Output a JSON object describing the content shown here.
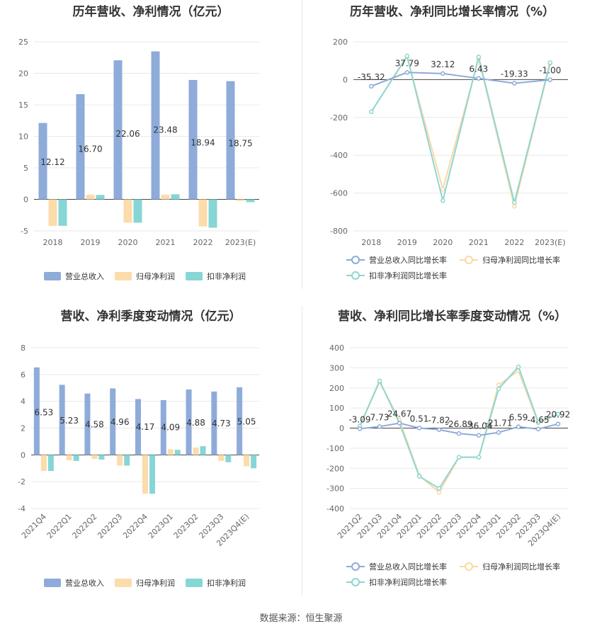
{
  "footer": "数据来源：恒生聚源",
  "colors": {
    "revenue": "#8eabd9",
    "net_profit": "#fbdcaa",
    "deducted": "#86d6d6",
    "revenue_line": "#8eabd9",
    "net_line": "#f9d9a4",
    "deducted_line": "#8fd6d2"
  },
  "chart_data": [
    {
      "type": "bar",
      "title": "历年营收、净利情况（亿元）",
      "categories": [
        "2018",
        "2019",
        "2020",
        "2021",
        "2022",
        "2023(E)"
      ],
      "series": [
        {
          "name": "营业总收入",
          "values": [
            12.12,
            16.7,
            22.06,
            23.48,
            18.94,
            18.75
          ],
          "labels": [
            "12.12",
            "16.70",
            "22.06",
            "23.48",
            "18.94",
            "18.75"
          ]
        },
        {
          "name": "归母净利润",
          "values": [
            -4.2,
            0.75,
            -3.7,
            0.75,
            -4.3,
            -0.25
          ]
        },
        {
          "name": "扣非净利润",
          "values": [
            -4.2,
            0.7,
            -3.7,
            0.8,
            -4.5,
            -0.45
          ]
        }
      ],
      "ylim": [
        -5,
        25
      ],
      "yticks": [
        "-5",
        "0",
        "5",
        "10",
        "15",
        "20",
        "25"
      ],
      "legend_position": "bottom"
    },
    {
      "type": "line",
      "title": "历年营收、净利同比增长率情况（%）",
      "categories": [
        "2018",
        "2019",
        "2020",
        "2021",
        "2022",
        "2023(E)"
      ],
      "series": [
        {
          "name": "营业总收入同比增长率",
          "values": [
            -35.32,
            37.79,
            32.12,
            6.43,
            -19.33,
            -1.0
          ],
          "labels": [
            "-35.32",
            "37.79",
            "32.12",
            "6.43",
            "-19.33",
            "-1.00"
          ]
        },
        {
          "name": "归母净利润同比增长率",
          "values": [
            -170,
            120,
            -580,
            110,
            -670,
            85
          ]
        },
        {
          "name": "扣非净利润同比增长率",
          "values": [
            -170,
            125,
            -640,
            120,
            -650,
            90
          ]
        }
      ],
      "ylim": [
        -800,
        200
      ],
      "yticks": [
        "-800",
        "-600",
        "-400",
        "-200",
        "0",
        "200"
      ],
      "legend_position": "bottom"
    },
    {
      "type": "bar",
      "title": "营收、净利季度变动情况（亿元）",
      "categories": [
        "2021Q4",
        "2022Q1",
        "2022Q2",
        "2022Q3",
        "2022Q4",
        "2023Q1",
        "2023Q2",
        "2023Q3",
        "2023Q4(E)"
      ],
      "series": [
        {
          "name": "营业总收入",
          "values": [
            6.53,
            5.23,
            4.58,
            4.96,
            4.17,
            4.09,
            4.88,
            4.73,
            5.05
          ],
          "labels": [
            "6.53",
            "5.23",
            "4.58",
            "4.96",
            "4.17",
            "4.09",
            "4.88",
            "4.73",
            "5.05"
          ]
        },
        {
          "name": "归母净利润",
          "values": [
            -1.2,
            -0.4,
            -0.3,
            -0.8,
            -2.9,
            0.42,
            0.55,
            -0.45,
            -0.85
          ]
        },
        {
          "name": "扣非净利润",
          "values": [
            -1.2,
            -0.45,
            -0.35,
            -0.8,
            -2.9,
            0.38,
            0.65,
            -0.55,
            -1.0
          ]
        }
      ],
      "ylim": [
        -4,
        8
      ],
      "yticks": [
        "-4",
        "-2",
        "0",
        "2",
        "4",
        "6",
        "8"
      ],
      "legend_position": "bottom"
    },
    {
      "type": "line",
      "title": "营收、净利同比增长率季度变动情况（%）",
      "categories": [
        "2021Q2",
        "2021Q3",
        "2021Q4",
        "2022Q1",
        "2022Q2",
        "2022Q3",
        "2022Q4",
        "2023Q1",
        "2023Q2",
        "2023Q3",
        "2023Q4(E)"
      ],
      "series": [
        {
          "name": "营业总收入同比增长率",
          "values": [
            -3.09,
            7.73,
            24.67,
            0.51,
            -7.82,
            -26.89,
            -36.04,
            -21.71,
            6.59,
            -4.65,
            20.92
          ],
          "labels": [
            "-3.09",
            "7.73",
            "24.67",
            "0.51",
            "-7.82",
            "-26.89",
            "-36.04",
            "-21.71",
            "6.59",
            "-4.65",
            "20.92"
          ]
        },
        {
          "name": "归母净利润同比增长率",
          "values": [
            10,
            230,
            40,
            -235,
            -320,
            -145,
            -145,
            215,
            285,
            25,
            70
          ]
        },
        {
          "name": "扣非净利润同比增长率",
          "values": [
            10,
            235,
            25,
            -240,
            -300,
            -145,
            -145,
            195,
            305,
            30,
            70
          ]
        }
      ],
      "ylim": [
        -400,
        400
      ],
      "yticks": [
        "-400",
        "-300",
        "-200",
        "-100",
        "0",
        "100",
        "200",
        "300",
        "400"
      ],
      "legend_position": "bottom"
    }
  ]
}
